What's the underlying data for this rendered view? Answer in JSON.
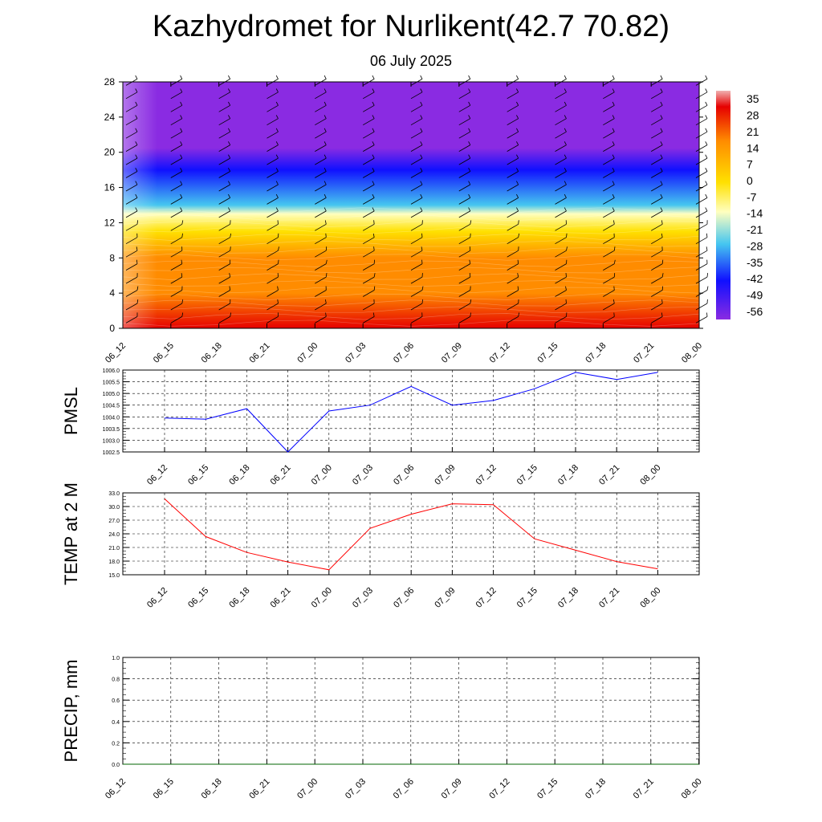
{
  "title": "Kazhydromet for Nurlikent(42.7 70.82)",
  "subtitle": "06 July 2025",
  "chart_data": [
    {
      "type": "heatmap",
      "x_ticks": [
        "06_12",
        "06_15",
        "06_18",
        "06_21",
        "07_00",
        "07_03",
        "07_06",
        "07_09",
        "07_12",
        "07_15",
        "07_18",
        "07_21",
        "08_00"
      ],
      "y_ticks": [
        "0",
        "4",
        "8",
        "12",
        "16",
        "20",
        "24",
        "28"
      ],
      "ylim": [
        0,
        28
      ],
      "colorbar_labels": [
        "35",
        "28",
        "21",
        "14",
        "7",
        "0",
        "-7",
        "-14",
        "-21",
        "-28",
        "-35",
        "-42",
        "-49",
        "-56"
      ],
      "colors": {
        "top": "#8a2be2",
        "blue": "#1010ff",
        "cyan": "#45c6f0",
        "pale": "#ffffc0",
        "yellow": "#ffe000",
        "orange": "#ff8c00",
        "red": "#e60000"
      },
      "profile": [
        {
          "h": 0,
          "t": 30
        },
        {
          "h": 4,
          "t": 24
        },
        {
          "h": 8,
          "t": 10
        },
        {
          "h": 11,
          "t": 0
        },
        {
          "h": 13,
          "t": -10
        },
        {
          "h": 14,
          "t": -18
        },
        {
          "h": 18,
          "t": -40
        },
        {
          "h": 20.5,
          "t": -60
        },
        {
          "h": 22,
          "t": -64
        },
        {
          "h": 28,
          "t": -66
        }
      ]
    },
    {
      "type": "line",
      "ylabel": "PMSL",
      "x": [
        "06_12",
        "06_15",
        "06_18",
        "06_21",
        "07_00",
        "07_03",
        "07_06",
        "07_09",
        "07_12",
        "07_15",
        "07_18",
        "07_21",
        "08_00"
      ],
      "y_ticks": [
        "1006.0",
        "1005.5",
        "1005.0",
        "1004.5",
        "1004.0",
        "1003.5",
        "1003.0",
        "1002.5"
      ],
      "ylim": [
        1002.5,
        1006.0
      ],
      "series": [
        {
          "values": [
            1003.95,
            1003.9,
            1004.35,
            1002.5,
            1004.25,
            1004.5,
            1005.3,
            1004.5,
            1004.7,
            1005.2,
            1005.9,
            1005.6,
            1005.9
          ]
        }
      ],
      "color": "#0000ff"
    },
    {
      "type": "line",
      "ylabel": "TEMP at 2 M",
      "x": [
        "06_12",
        "06_15",
        "06_18",
        "06_21",
        "07_00",
        "07_03",
        "07_06",
        "07_09",
        "07_12",
        "07_15",
        "07_18",
        "07_21",
        "08_00"
      ],
      "y_ticks": [
        "33.0",
        "30.0",
        "27.0",
        "24.0",
        "21.0",
        "18.0",
        "15.0"
      ],
      "ylim": [
        15.0,
        33.0
      ],
      "series": [
        {
          "values": [
            31.7,
            23.4,
            19.9,
            17.8,
            16.1,
            25.2,
            28.3,
            30.6,
            30.4,
            22.9,
            20.4,
            17.9,
            16.3
          ]
        }
      ],
      "color": "#ff0000"
    },
    {
      "type": "line",
      "ylabel": "PRECIP, mm",
      "x": [
        "06_12",
        "06_15",
        "06_18",
        "06_21",
        "07_00",
        "07_03",
        "07_06",
        "07_09",
        "07_12",
        "07_15",
        "07_18",
        "07_21",
        "08_00"
      ],
      "y_ticks": [
        "1.0",
        "0.8",
        "0.6",
        "0.4",
        "0.2",
        "0.0"
      ],
      "ylim": [
        0.0,
        1.0
      ],
      "series": [
        {
          "values": [
            0,
            0,
            0,
            0,
            0,
            0,
            0,
            0,
            0,
            0,
            0,
            0,
            0
          ]
        }
      ],
      "color": "#006400"
    }
  ]
}
